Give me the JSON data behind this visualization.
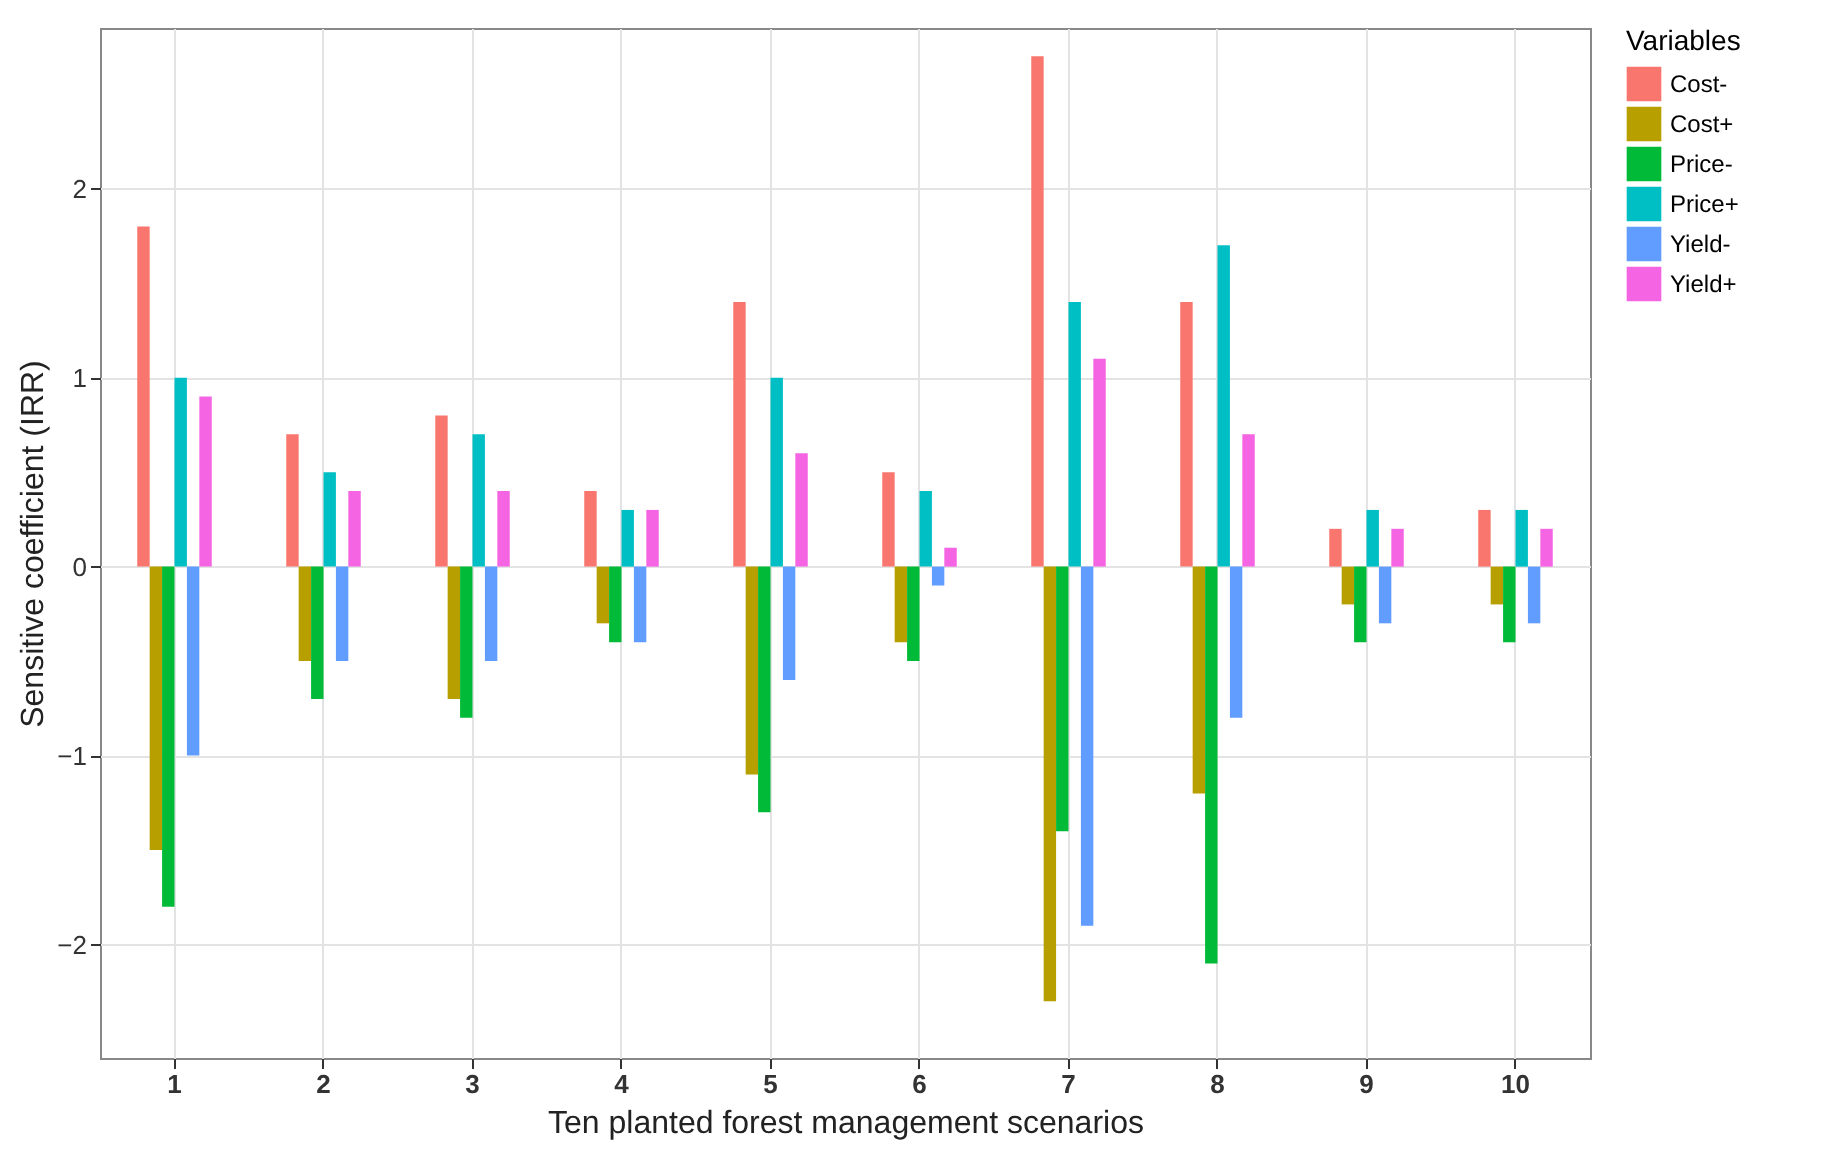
{
  "chart_data": {
    "type": "bar",
    "xlabel": "Ten planted forest management scenarios",
    "ylabel": "Sensitive coefficient (IRR)",
    "legend_title": "Variables",
    "legend": "right",
    "grid": true,
    "categories": [
      "1",
      "2",
      "3",
      "4",
      "5",
      "6",
      "7",
      "8",
      "9",
      "10"
    ],
    "ylim": [
      -2.6,
      2.85
    ],
    "yticks": [
      -2,
      -1,
      0,
      1,
      2
    ],
    "series": [
      {
        "name": "Cost-",
        "color": "#f8766d",
        "values": [
          1.8,
          0.7,
          0.8,
          0.4,
          1.4,
          0.5,
          2.7,
          1.4,
          0.2,
          0.3
        ]
      },
      {
        "name": "Cost+",
        "color": "#b79f00",
        "values": [
          -1.5,
          -0.5,
          -0.7,
          -0.3,
          -1.1,
          -0.4,
          -2.3,
          -1.2,
          -0.2,
          -0.2
        ]
      },
      {
        "name": "Price-",
        "color": "#00ba38",
        "values": [
          -1.8,
          -0.7,
          -0.8,
          -0.4,
          -1.3,
          -0.5,
          -1.4,
          -2.1,
          -0.4,
          -0.4
        ]
      },
      {
        "name": "Price+",
        "color": "#00bfc4",
        "values": [
          1.0,
          0.5,
          0.7,
          0.3,
          1.0,
          0.4,
          1.4,
          1.7,
          0.3,
          0.3
        ]
      },
      {
        "name": "Yield-",
        "color": "#619cff",
        "values": [
          -1.0,
          -0.5,
          -0.5,
          -0.4,
          -0.6,
          -0.1,
          -1.9,
          -0.8,
          -0.3,
          -0.3
        ]
      },
      {
        "name": "Yield+",
        "color": "#f564e3",
        "values": [
          0.9,
          0.4,
          0.4,
          0.3,
          0.6,
          0.1,
          1.1,
          0.7,
          0.2,
          0.2
        ]
      }
    ]
  }
}
